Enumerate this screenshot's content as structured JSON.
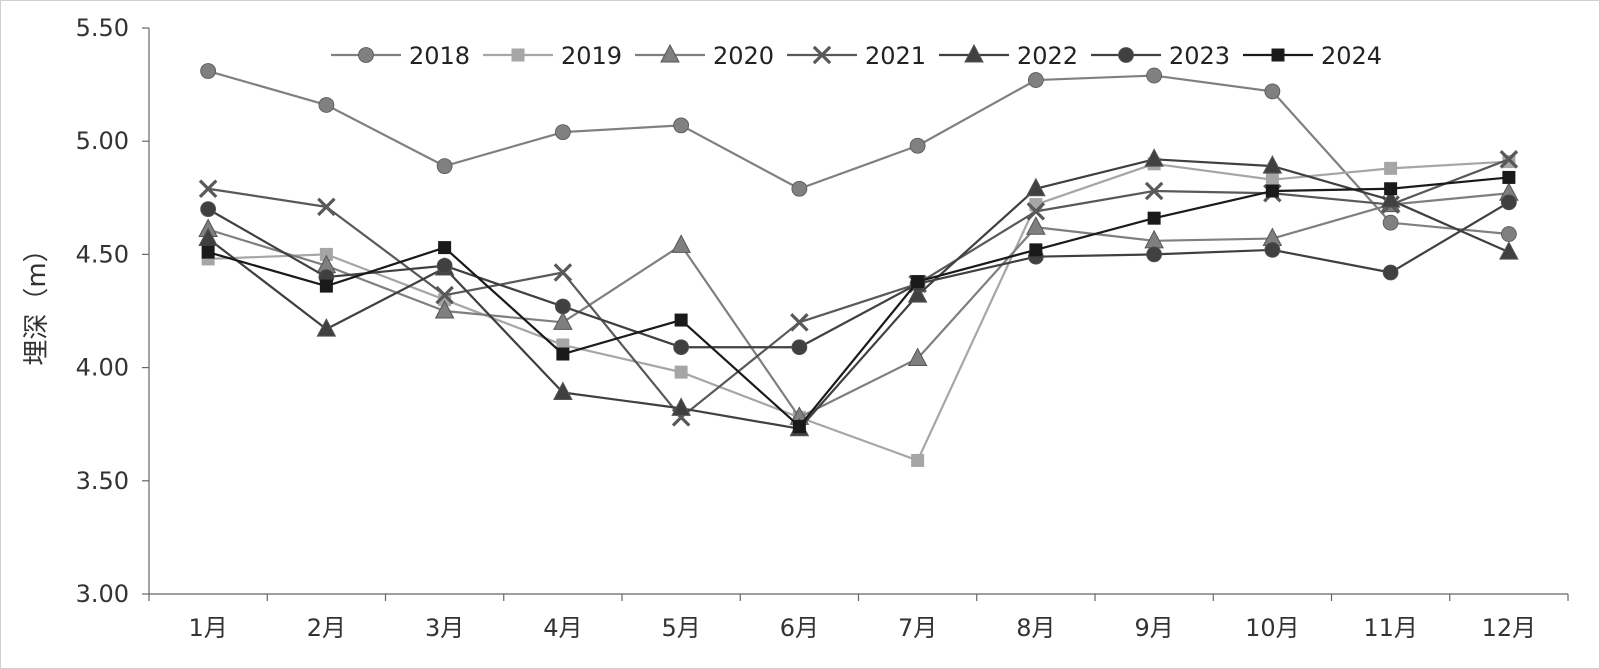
{
  "chart_data": {
    "type": "line",
    "title": "",
    "xlabel": "",
    "ylabel": "埋深（m）",
    "categories": [
      "1月",
      "2月",
      "3月",
      "4月",
      "5月",
      "6月",
      "7月",
      "8月",
      "9月",
      "10月",
      "11月",
      "12月"
    ],
    "ylim": [
      3.0,
      5.5
    ],
    "yticks": [
      "3.00",
      "3.50",
      "4.00",
      "4.50",
      "5.00",
      "5.50"
    ],
    "grid": false,
    "legend_position": "top",
    "series": [
      {
        "name": "2018",
        "marker": "circle",
        "color": "#808080",
        "values": [
          5.31,
          5.16,
          4.89,
          5.04,
          5.07,
          4.79,
          4.98,
          5.27,
          5.29,
          5.22,
          4.64,
          4.59
        ]
      },
      {
        "name": "2019",
        "marker": "square",
        "color": "#a6a6a6",
        "values": [
          4.48,
          4.5,
          4.3,
          4.1,
          3.98,
          3.78,
          3.59,
          4.72,
          4.9,
          4.83,
          4.88,
          4.91
        ]
      },
      {
        "name": "2020",
        "marker": "triangle",
        "color": "#7f7f7f",
        "values": [
          4.61,
          4.45,
          4.25,
          4.2,
          4.54,
          3.78,
          4.04,
          4.62,
          4.56,
          4.57,
          4.72,
          4.77
        ]
      },
      {
        "name": "2021",
        "marker": "x",
        "color": "#595959",
        "values": [
          4.79,
          4.71,
          4.32,
          4.42,
          3.78,
          4.2,
          4.37,
          4.69,
          4.78,
          4.77,
          4.72,
          4.92
        ]
      },
      {
        "name": "2022",
        "marker": "triangle",
        "color": "#404040",
        "values": [
          4.57,
          4.17,
          4.44,
          3.89,
          3.82,
          3.73,
          4.32,
          4.79,
          4.92,
          4.89,
          4.74,
          4.51
        ]
      },
      {
        "name": "2023",
        "marker": "circle",
        "color": "#404040",
        "values": [
          4.7,
          4.4,
          4.45,
          4.27,
          4.09,
          4.09,
          4.37,
          4.49,
          4.5,
          4.52,
          4.42,
          4.73
        ]
      },
      {
        "name": "2024",
        "marker": "square",
        "color": "#1a1a1a",
        "values": [
          4.51,
          4.36,
          4.53,
          4.06,
          4.21,
          3.74,
          4.38,
          4.52,
          4.66,
          4.78,
          4.79,
          4.84
        ]
      }
    ]
  }
}
